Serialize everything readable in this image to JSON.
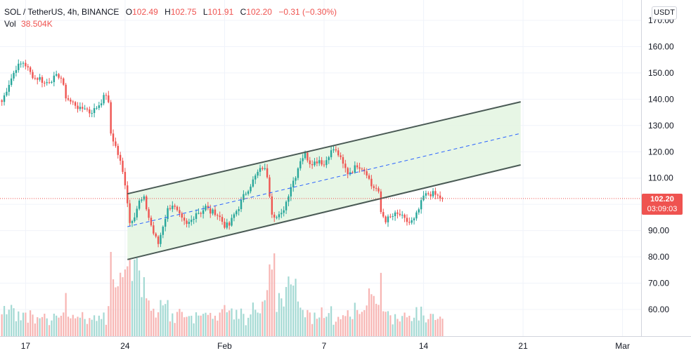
{
  "header": {
    "symbol": "SOL / TetherUS, 4h, BINANCE",
    "o_label": "O",
    "o_value": "102.49",
    "h_label": "H",
    "h_value": "102.75",
    "l_label": "L",
    "l_value": "101.91",
    "c_label": "C",
    "c_value": "102.20",
    "change": "−0.31 (−0.30%)",
    "vol_label": "Vol",
    "vol_value": "38.504K"
  },
  "currency": "USDT",
  "last_price": {
    "price": "102.20",
    "countdown": "03:09:03"
  },
  "colors": {
    "up": "#26a69a",
    "down": "#ef5350",
    "volume_up": "#a3d9d3",
    "volume_down": "#f7b4b2",
    "channel_fill": "#e3f4e0",
    "channel_line": "#4a5a55",
    "midline": "#2962ff"
  },
  "chart_data": {
    "type": "candlestick",
    "title": "SOL / TetherUS, 4h, BINANCE",
    "y_ticks": [
      "170.00",
      "160.00",
      "150.00",
      "140.00",
      "130.00",
      "120.00",
      "110.00",
      "100.00",
      "90.00",
      "80.00",
      "70.00",
      "60.00"
    ],
    "ylim": [
      50,
      173
    ],
    "x_ticks": [
      "17",
      "24",
      "Feb",
      "7",
      "14",
      "21",
      "Mar"
    ],
    "x_tick_bars": [
      10,
      52,
      94,
      136,
      178,
      220,
      262
    ],
    "bar_count": 187,
    "close_anchors": [
      [
        0,
        139
      ],
      [
        3,
        146
      ],
      [
        6,
        152
      ],
      [
        9,
        154
      ],
      [
        10,
        153
      ],
      [
        12,
        150
      ],
      [
        14,
        148
      ],
      [
        16,
        148
      ],
      [
        18,
        146
      ],
      [
        20,
        147
      ],
      [
        22,
        148
      ],
      [
        24,
        149
      ],
      [
        25,
        148
      ],
      [
        27,
        141
      ],
      [
        29,
        139
      ],
      [
        31,
        138
      ],
      [
        33,
        136
      ],
      [
        35,
        137
      ],
      [
        37,
        135
      ],
      [
        39,
        136
      ],
      [
        41,
        138
      ],
      [
        44,
        142
      ],
      [
        45,
        138
      ],
      [
        46,
        127
      ],
      [
        48,
        122
      ],
      [
        50,
        116
      ],
      [
        52,
        108
      ],
      [
        53,
        101
      ],
      [
        54,
        93
      ],
      [
        56,
        96
      ],
      [
        58,
        101
      ],
      [
        60,
        102
      ],
      [
        62,
        95
      ],
      [
        64,
        89
      ],
      [
        66,
        85
      ],
      [
        68,
        92
      ],
      [
        70,
        98
      ],
      [
        72,
        100
      ],
      [
        74,
        97
      ],
      [
        76,
        94
      ],
      [
        78,
        92
      ],
      [
        80,
        94
      ],
      [
        82,
        97
      ],
      [
        84,
        97
      ],
      [
        86,
        99
      ],
      [
        88,
        97
      ],
      [
        90,
        97
      ],
      [
        92,
        95
      ],
      [
        94,
        92
      ],
      [
        96,
        92
      ],
      [
        98,
        96
      ],
      [
        100,
        99
      ],
      [
        102,
        103
      ],
      [
        104,
        106
      ],
      [
        106,
        109
      ],
      [
        108,
        112
      ],
      [
        110,
        114
      ],
      [
        111,
        113
      ],
      [
        112,
        111
      ],
      [
        114,
        97
      ],
      [
        116,
        95
      ],
      [
        118,
        96
      ],
      [
        120,
        101
      ],
      [
        122,
        107
      ],
      [
        124,
        111
      ],
      [
        126,
        117
      ],
      [
        128,
        119
      ],
      [
        130,
        116
      ],
      [
        132,
        116
      ],
      [
        134,
        117
      ],
      [
        136,
        115
      ],
      [
        138,
        119
      ],
      [
        140,
        121
      ],
      [
        142,
        119
      ],
      [
        144,
        115
      ],
      [
        146,
        112
      ],
      [
        148,
        113
      ],
      [
        150,
        115
      ],
      [
        152,
        114
      ],
      [
        154,
        112
      ],
      [
        156,
        107
      ],
      [
        158,
        106
      ],
      [
        159,
        104
      ],
      [
        160,
        97
      ],
      [
        162,
        94
      ],
      [
        164,
        95
      ],
      [
        166,
        96
      ],
      [
        168,
        96
      ],
      [
        170,
        94
      ],
      [
        172,
        93
      ],
      [
        174,
        94
      ],
      [
        176,
        98
      ],
      [
        178,
        103
      ],
      [
        180,
        104
      ],
      [
        182,
        104
      ],
      [
        184,
        103
      ],
      [
        186,
        102.2
      ]
    ],
    "channel": {
      "upper": [
        [
          53,
          104
        ],
        [
          219,
          139
        ]
      ],
      "lower": [
        [
          53,
          79
        ],
        [
          219,
          115
        ]
      ],
      "mid": [
        [
          53,
          91.5
        ],
        [
          219,
          127
        ]
      ]
    },
    "last_close": 102.2
  }
}
